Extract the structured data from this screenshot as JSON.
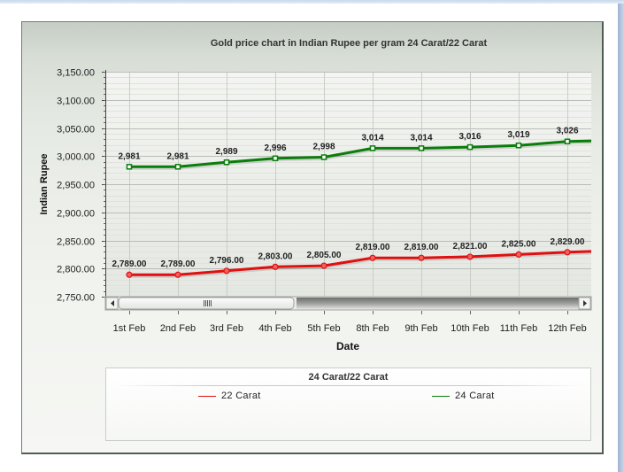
{
  "chart_data": {
    "type": "line",
    "title": "Gold price chart in Indian Rupee per gram 24 Carat/22 Carat",
    "xlabel": "Date",
    "ylabel": "Indian Rupee",
    "categories": [
      "1st Feb",
      "2nd Feb",
      "3rd Feb",
      "4th Feb",
      "5th Feb",
      "8th Feb",
      "9th Feb",
      "10th Feb",
      "11th Feb",
      "12th Feb"
    ],
    "ylim": [
      2750,
      3150
    ],
    "yticks": [
      "3,150.00",
      "3,100.00",
      "3,050.00",
      "3,000.00",
      "2,950.00",
      "2,900.00",
      "2,850.00",
      "2,800.00",
      "2,750.00"
    ],
    "grid": true,
    "legend": "bottom",
    "legend_title": "24 Carat/22 Carat",
    "series": [
      {
        "name": "24 Carat",
        "color": "#0a7d0a",
        "values": [
          2981,
          2981,
          2989,
          2996,
          2998,
          3014,
          3014,
          3016,
          3019,
          3026
        ],
        "labels": [
          "2,981",
          "2,981",
          "2,989",
          "2,996",
          "2,998",
          "3,014",
          "3,014",
          "3,016",
          "3,019",
          "3,026"
        ],
        "next_value": 3028
      },
      {
        "name": "22 Carat",
        "color": "#e01010",
        "values": [
          2789,
          2789,
          2796,
          2803,
          2805,
          2819,
          2819,
          2821,
          2825,
          2829
        ],
        "labels": [
          "2,789.00",
          "2,789.00",
          "2,796.00",
          "2,803.00",
          "2,805.00",
          "2,819.00",
          "2,819.00",
          "2,821.00",
          "2,825.00",
          "2,829.00"
        ],
        "next_value": 2832
      }
    ],
    "legend_order": [
      "22 Carat",
      "24 Carat"
    ]
  }
}
